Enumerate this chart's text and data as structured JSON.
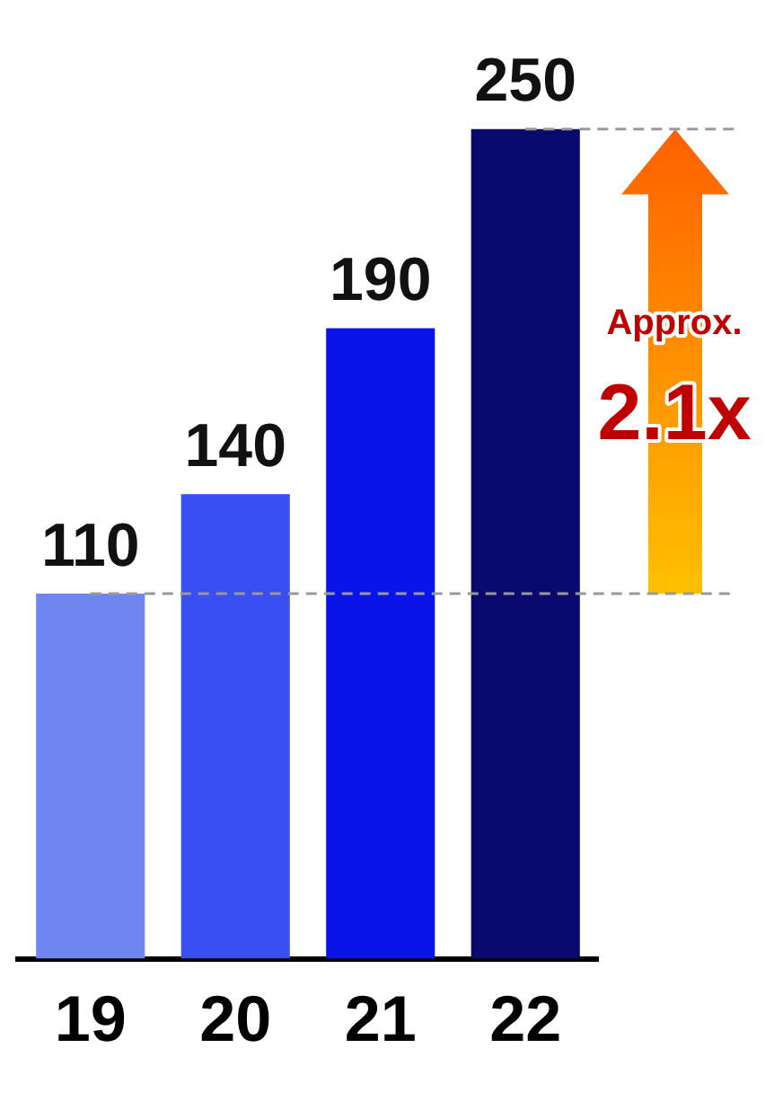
{
  "chart_data": {
    "type": "bar",
    "categories": [
      "19",
      "20",
      "21",
      "22"
    ],
    "values": [
      110,
      140,
      190,
      250
    ],
    "colors": [
      "#6f86f0",
      "#3a4ff2",
      "#0a14e8",
      "#0a0a6e"
    ],
    "data_labels": true,
    "grid": false,
    "legend": false,
    "tick_labels": "x",
    "ref_lines": [
      {
        "axis": "y",
        "value": 110,
        "color": "#999999",
        "line_style": "dashed"
      },
      {
        "axis": "y",
        "value": 250,
        "color": "#999999",
        "line_style": "dashed"
      }
    ],
    "annotations": [
      "Approx.",
      "2.1x"
    ]
  }
}
